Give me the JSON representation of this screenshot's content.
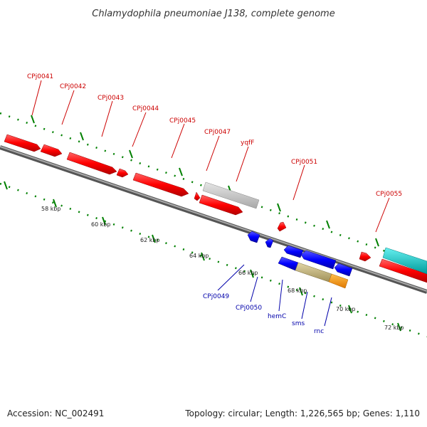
{
  "title": "Chlamydophila pneumoniae J138, complete genome",
  "footer": {
    "accession": "Accession: NC_002491",
    "summary": "Topology: circular; Length: 1,226,565 bp; Genes: 1,110"
  },
  "colors": {
    "plus_strand": "#ff0000",
    "minus_strand": "#0000ff",
    "label_plus": "#cc0000",
    "label_minus": "#0000aa",
    "pseudo": "#c0c0c0",
    "cyan_feature": "#00cccc",
    "khaki_feature": "#c8b878",
    "orange_feature": "#ff9900",
    "tick": "#008000",
    "backbone": "#808080"
  },
  "scale_labels": [
    "58 kbp",
    "60 kbp",
    "62 kbp",
    "64 kbp",
    "66 kbp",
    "68 kbp",
    "70 kbp",
    "72 kbp"
  ],
  "genes_top": [
    "CPj0041",
    "CPj0042",
    "CPj0043",
    "CPj0044",
    "CPj0045",
    "CPj0047",
    "yqfF",
    "CPj0051",
    "CPj0055"
  ],
  "genes_bottom": [
    "CPj0049",
    "CPj0050",
    "hemC",
    "sms",
    "rnc"
  ]
}
